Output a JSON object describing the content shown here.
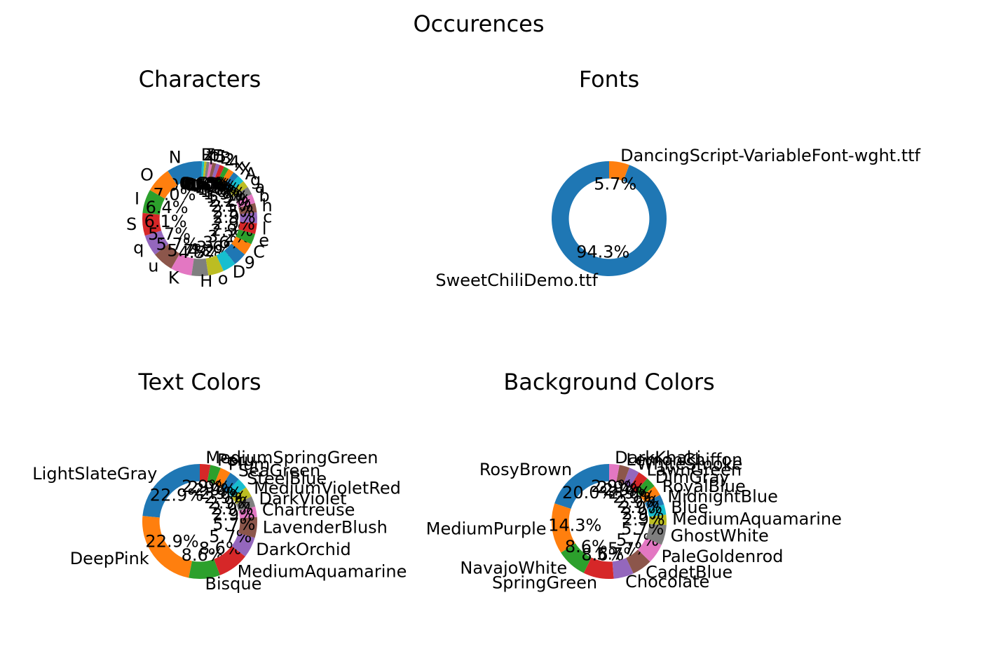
{
  "figure": {
    "title": "Occurences"
  },
  "palette": [
    "#1f77b4",
    "#ff7f0e",
    "#2ca02c",
    "#d62728",
    "#9467bd",
    "#8c564b",
    "#e377c2",
    "#7f7f7f",
    "#bcbd22",
    "#17becf"
  ],
  "chart_data": [
    {
      "type": "pie",
      "donut": true,
      "title": "Characters",
      "labels": [
        "N",
        "O",
        "I",
        "S",
        "q",
        "u",
        "K",
        "H",
        "o",
        "D",
        "9",
        "C",
        "e",
        "l",
        "c",
        "h",
        "b",
        "a",
        "g",
        "A",
        "X",
        "x",
        "4",
        "2",
        "B",
        "5",
        "E",
        "p",
        "z",
        "Z",
        "R"
      ],
      "values": [
        9,
        7,
        6.4,
        6.1,
        5.7,
        5.7,
        5.7,
        4.5,
        4.2,
        3.6,
        3.6,
        3.2,
        2.9,
        2.9,
        2.9,
        2.5,
        2.5,
        2.2,
        1.9,
        1.9,
        1.6,
        1.6,
        1.3,
        1.3,
        1,
        1,
        0.8,
        0.8,
        0.6,
        0.6,
        0.6
      ],
      "percent_labels": [
        "9.0%",
        "7.0%",
        "6.4%",
        "6.1%",
        "5.7%",
        "5.7%",
        "5.7%",
        "4.5%",
        "4.2%",
        "3.6%",
        "3.6%",
        "3.2%",
        "2.9%",
        "2.9%",
        "2.9%",
        "2.5%",
        "2.5%",
        "2.2%",
        "1.9%",
        "1.9%",
        "1.6%",
        "1.6%",
        "1.3%",
        "1.3%",
        "1.0%",
        "1.0%",
        "0.8%",
        "0.8%",
        "0.6%",
        "0.6%",
        "0.6%"
      ]
    },
    {
      "type": "pie",
      "donut": true,
      "title": "Fonts",
      "labels": [
        "SweetChiliDemo.ttf",
        "DancingScript-VariableFont-wght.ttf"
      ],
      "values": [
        94.3,
        5.7
      ],
      "percent_labels": [
        "94.3%",
        "5.7%"
      ]
    },
    {
      "type": "pie",
      "donut": true,
      "title": "Text Colors",
      "labels": [
        "LightSlateGray",
        "DeepPink",
        "Bisque",
        "MediumAquamarine",
        "DarkOrchid",
        "LavenderBlush",
        "Chartreuse",
        "DarkViolet",
        "MediumVioletRed",
        "SteelBlue",
        "SeaGreen",
        "Plum",
        "Peru",
        "MediumSpringGreen"
      ],
      "values": [
        22.9,
        22.9,
        8.6,
        8.6,
        5.7,
        5.7,
        2.9,
        2.9,
        2.9,
        2.9,
        2.9,
        2.9,
        2.9,
        2.9
      ],
      "percent_labels": [
        "22.9%",
        "22.9%",
        "8.6%",
        "8.6%",
        "5.7%",
        "5.7%",
        "2.9%",
        "2.9%",
        "2.9%",
        "2.9%",
        "2.9%",
        "2.9%",
        "2.9%",
        "2.9%"
      ]
    },
    {
      "type": "pie",
      "donut": true,
      "title": "Background Colors",
      "labels": [
        "RosyBrown",
        "MediumPurple",
        "NavajoWhite",
        "SpringGreen",
        "Chocolate",
        "CadetBlue",
        "PaleGoldenrod",
        "GhostWhite",
        "MediumAquamarine",
        "Blue",
        "MidnightBlue",
        "RoyalBlue",
        "DimGray",
        "LawnGreen",
        "WhiteSmoke",
        "LemonChiffon",
        "DarkKhaki"
      ],
      "values": [
        20,
        14.3,
        8.6,
        8.6,
        5.7,
        5.7,
        5.7,
        5.7,
        2.9,
        2.9,
        2.9,
        2.9,
        2.9,
        2.9,
        2.9,
        2.9,
        2.9
      ],
      "percent_labels": [
        "20.0%",
        "14.3%",
        "8.6%",
        "8.6%",
        "5.7%",
        "5.7%",
        "5.7%",
        "5.7%",
        "2.9%",
        "2.9%",
        "2.9%",
        "2.9%",
        "2.9%",
        "2.9%",
        "2.9%",
        "2.9%",
        "2.9%"
      ]
    }
  ]
}
